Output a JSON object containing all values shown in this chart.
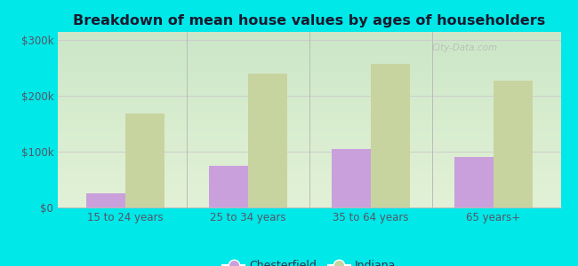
{
  "title": "Breakdown of mean house values by ages of householders",
  "categories": [
    "15 to 24 years",
    "25 to 34 years",
    "35 to 64 years",
    "65 years+"
  ],
  "chesterfield_values": [
    25000,
    75000,
    105000,
    90000
  ],
  "indiana_values": [
    168000,
    240000,
    258000,
    228000
  ],
  "chesterfield_color": "#c9a0dc",
  "indiana_color": "#c8d4a0",
  "background_color": "#00e8e8",
  "plot_bg_color": "#edf5e1",
  "ylabel_ticks": [
    0,
    100000,
    200000,
    300000
  ],
  "ylabel_labels": [
    "$0",
    "$100k",
    "$200k",
    "$300k"
  ],
  "ylim": [
    0,
    315000
  ],
  "bar_width": 0.32,
  "legend_chesterfield": "Chesterfield",
  "legend_indiana": "Indiana",
  "title_fontsize": 11.5,
  "tick_fontsize": 8.5,
  "legend_fontsize": 9,
  "watermark_text": "City-Data.com"
}
